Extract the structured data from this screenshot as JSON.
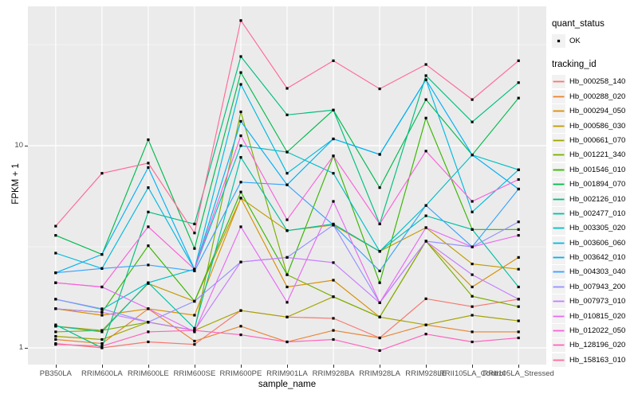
{
  "figure": {
    "legend": {
      "quant_status_title": "quant_status",
      "ok_label": "OK",
      "tracking_id_title": "tracking_id"
    },
    "colors": {
      "panel_bg": "#EBEBEB",
      "grid": "#FFFFFF",
      "legend_key_bg": "#F2F2F2",
      "axis_text": "#4D4D4D",
      "tick_mark": "#333333",
      "point": "#000000"
    },
    "y_ticks": [
      {
        "label": "10",
        "value": 10
      },
      {
        "label": "1",
        "value": 1
      }
    ]
  },
  "chart_data": {
    "type": "line",
    "title": "",
    "xlabel": "sample_name",
    "ylabel": "FPKM + 1",
    "y_scale": "log10",
    "ylim": [
      0.84,
      48
    ],
    "y_major_gridlines": [
      1,
      10
    ],
    "y_minor_gridlines": [
      3.162,
      31.62
    ],
    "grid": true,
    "legend_position": "right",
    "marker": "black point (quant_status = OK)",
    "categories": [
      "PB350LA",
      "RRIM600LA",
      "RRIM600LE",
      "RRIM600SE",
      "RRIM600PE",
      "RRIM901LA",
      "RRIM928BA",
      "RRIM928LA",
      "RRIM928LE",
      "RRII105LA_Control",
      "RRII105LA_Stressed"
    ],
    "series": [
      {
        "name": "Hb_000258_140",
        "color": "#F8766D",
        "values": [
          1.05,
          1.0,
          1.07,
          1.04,
          1.53,
          1.42,
          1.4,
          1.12,
          1.75,
          1.6,
          1.74
        ]
      },
      {
        "name": "Hb_000288_020",
        "color": "#EA8331",
        "values": [
          1.1,
          1.05,
          1.56,
          1.08,
          1.28,
          1.07,
          1.22,
          1.12,
          1.3,
          1.2,
          1.2
        ]
      },
      {
        "name": "Hb_000294_050",
        "color": "#D89000",
        "values": [
          1.56,
          1.45,
          1.56,
          1.45,
          5.5,
          2.0,
          2.16,
          1.42,
          3.37,
          2.0,
          2.8
        ]
      },
      {
        "name": "Hb_000586_030",
        "color": "#C09B00",
        "values": [
          1.28,
          1.22,
          2.08,
          1.7,
          5.5,
          3.8,
          4.05,
          3.0,
          3.93,
          2.6,
          2.45
        ]
      },
      {
        "name": "Hb_000661_070",
        "color": "#A3A500",
        "values": [
          1.14,
          1.1,
          1.34,
          1.22,
          1.53,
          1.42,
          1.79,
          1.42,
          1.3,
          1.45,
          1.36
        ]
      },
      {
        "name": "Hb_001221_340",
        "color": "#7CAE00",
        "values": [
          1.2,
          1.22,
          1.34,
          1.22,
          14.7,
          2.3,
          1.79,
          1.42,
          3.37,
          1.8,
          1.6
        ]
      },
      {
        "name": "Hb_001546_010",
        "color": "#39B600",
        "values": [
          1.56,
          1.5,
          3.2,
          1.7,
          5.9,
          2.3,
          8.9,
          2.1,
          13.7,
          3.85,
          3.85
        ]
      },
      {
        "name": "Hb_001894_070",
        "color": "#00BB4E",
        "values": [
          3.6,
          2.9,
          10.7,
          3.1,
          23.0,
          9.3,
          15.0,
          6.2,
          16.9,
          9.0,
          17.2
        ]
      },
      {
        "name": "Hb_002126_010",
        "color": "#00BF7D",
        "values": [
          1.3,
          1.0,
          4.7,
          4.1,
          27.6,
          14.2,
          15.0,
          4.1,
          22.2,
          13.1,
          20.5
        ]
      },
      {
        "name": "Hb_002477_010",
        "color": "#00C1A3",
        "values": [
          1.28,
          1.2,
          2.1,
          1.25,
          8.75,
          3.8,
          4.1,
          3.0,
          4.5,
          3.85,
          2.0
        ]
      },
      {
        "name": "Hb_003305_020",
        "color": "#00BFC4",
        "values": [
          1.74,
          1.55,
          2.1,
          2.45,
          10.0,
          9.3,
          7.3,
          3.0,
          5.06,
          9.0,
          7.6
        ]
      },
      {
        "name": "Hb_003606_060",
        "color": "#00BAE0",
        "values": [
          2.94,
          2.47,
          6.2,
          2.45,
          20.1,
          7.3,
          10.8,
          9.05,
          21.2,
          4.7,
          7.6
        ]
      },
      {
        "name": "Hb_003642_010",
        "color": "#00B0F6",
        "values": [
          2.35,
          2.9,
          7.8,
          2.45,
          13.2,
          6.4,
          10.8,
          9.05,
          21.2,
          9.0,
          6.1
        ]
      },
      {
        "name": "Hb_004303_040",
        "color": "#35A2FF",
        "values": [
          2.35,
          2.47,
          2.57,
          2.4,
          6.6,
          6.4,
          4.05,
          2.4,
          5.06,
          3.16,
          6.1
        ]
      },
      {
        "name": "Hb_007943_200",
        "color": "#9590FF",
        "values": [
          1.74,
          1.56,
          1.34,
          1.7,
          2.66,
          2.8,
          4.05,
          1.67,
          3.37,
          3.16,
          4.2
        ]
      },
      {
        "name": "Hb_007973_010",
        "color": "#C77CFF",
        "values": [
          1.56,
          1.5,
          1.34,
          1.22,
          2.66,
          2.8,
          2.64,
          1.67,
          3.37,
          2.3,
          1.74
        ]
      },
      {
        "name": "Hb_010815_020",
        "color": "#E76BF3",
        "values": [
          2.1,
          2.0,
          1.56,
          1.2,
          3.97,
          1.68,
          5.3,
          1.67,
          3.93,
          3.16,
          3.6
        ]
      },
      {
        "name": "Hb_012022_050",
        "color": "#FA62DB",
        "values": [
          2.1,
          2.0,
          3.97,
          2.45,
          11.2,
          4.3,
          8.9,
          4.1,
          9.4,
          5.3,
          6.8
        ]
      },
      {
        "name": "Hb_128196_020",
        "color": "#FF62BC",
        "values": [
          1.04,
          1.02,
          1.2,
          1.22,
          1.16,
          1.07,
          1.1,
          0.97,
          1.17,
          1.07,
          1.12
        ]
      },
      {
        "name": "Hb_158163_010",
        "color": "#FF6A98",
        "values": [
          4.0,
          7.3,
          8.2,
          3.7,
          41.6,
          19.2,
          26.3,
          19.1,
          25.2,
          16.9,
          26.3
        ]
      }
    ]
  }
}
